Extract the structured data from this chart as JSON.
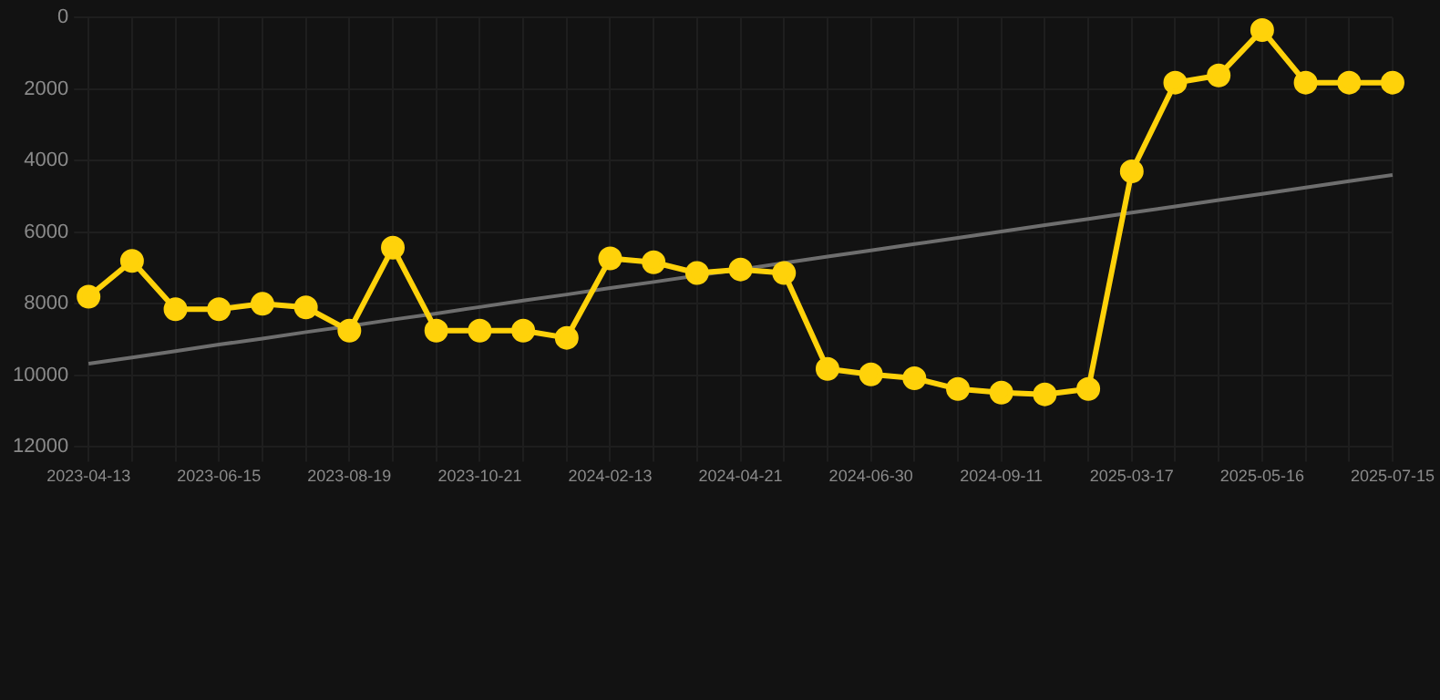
{
  "chart_data": {
    "type": "line",
    "categories": [
      "2023-04-13",
      null,
      null,
      "2023-06-15",
      null,
      null,
      "2023-08-19",
      null,
      null,
      "2023-10-21",
      null,
      null,
      "2024-02-13",
      null,
      null,
      "2024-04-21",
      null,
      null,
      "2024-06-30",
      null,
      null,
      "2024-09-11",
      null,
      null,
      "2025-03-17",
      null,
      null,
      "2025-05-16",
      null,
      null,
      "2025-07-15"
    ],
    "series": [
      {
        "color": "#ffd20a",
        "marker": "circle",
        "values": [
          7800,
          6800,
          8150,
          8150,
          8000,
          8100,
          8750,
          6430,
          8750,
          8750,
          8750,
          8950,
          6730,
          6840,
          7140,
          7040,
          7140,
          9820,
          9970,
          10080,
          10380,
          10480,
          10530,
          10380,
          4300,
          1820,
          1620,
          350,
          1820,
          1820,
          1820
        ]
      },
      {
        "type": "line",
        "color": "#6e6e6e",
        "marker": "none",
        "values": [
          9670,
          9500,
          9320,
          9140,
          8970,
          8790,
          8620,
          8440,
          8270,
          8090,
          7910,
          7740,
          7560,
          7390,
          7210,
          7040,
          6860,
          6680,
          6510,
          6330,
          6160,
          5980,
          5800,
          5630,
          5450,
          5280,
          5100,
          4930,
          4750,
          4570,
          4400
        ]
      }
    ],
    "ylim": [
      12000,
      0
    ],
    "yticks": [
      0,
      2000,
      4000,
      6000,
      8000,
      10000,
      12000
    ],
    "grid": true,
    "line_style": "solid"
  }
}
